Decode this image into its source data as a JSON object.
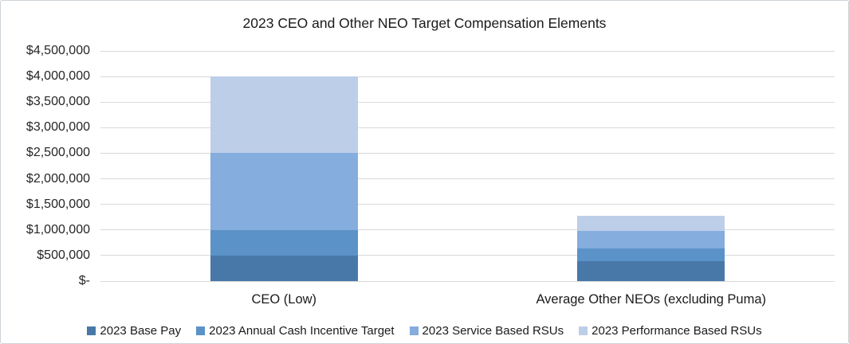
{
  "title": "2023 CEO and Other NEO Target Compensation Elements",
  "colors": {
    "base_pay": "#4878a8",
    "cash_incentive": "#5b92c7",
    "service_rsus": "#85addd",
    "performance_rsus": "#bdcee9",
    "gridline": "#d9d9d9",
    "text": "#1a1a1a"
  },
  "chart_data": {
    "type": "bar",
    "stacked": true,
    "title": "2023 CEO and Other NEO Target Compensation Elements",
    "categories": [
      "CEO (Low)",
      "Average Other NEOs (excluding Puma)"
    ],
    "series": [
      {
        "name": "2023 Base Pay",
        "color": "#4878a8",
        "values": [
          500000,
          385000
        ]
      },
      {
        "name": "2023 Annual Cash Incentive Target",
        "color": "#5b92c7",
        "values": [
          500000,
          255000
        ]
      },
      {
        "name": "2023 Service Based RSUs",
        "color": "#85addd",
        "values": [
          1500000,
          335000
        ]
      },
      {
        "name": "2023 Performance Based RSUs",
        "color": "#bdcee9",
        "values": [
          1500000,
          300000
        ]
      }
    ],
    "totals": [
      4000000,
      1275000
    ],
    "xlabel": "",
    "ylabel": "",
    "ylim": [
      0,
      4500000
    ],
    "ytick_step": 500000,
    "y_ticks": [
      {
        "label": "$4,500,000",
        "value": 4500000
      },
      {
        "label": "$4,000,000",
        "value": 4000000
      },
      {
        "label": "$3,500,000",
        "value": 3500000
      },
      {
        "label": "$3,000,000",
        "value": 3000000
      },
      {
        "label": "$2,500,000",
        "value": 2500000
      },
      {
        "label": "$2,000,000",
        "value": 2000000
      },
      {
        "label": "$1,500,000",
        "value": 1500000
      },
      {
        "label": "$1,000,000",
        "value": 1000000
      },
      {
        "label": "$500,000",
        "value": 500000
      },
      {
        "label": "$-",
        "value": 0
      }
    ],
    "grid": true,
    "legend_position": "bottom"
  }
}
